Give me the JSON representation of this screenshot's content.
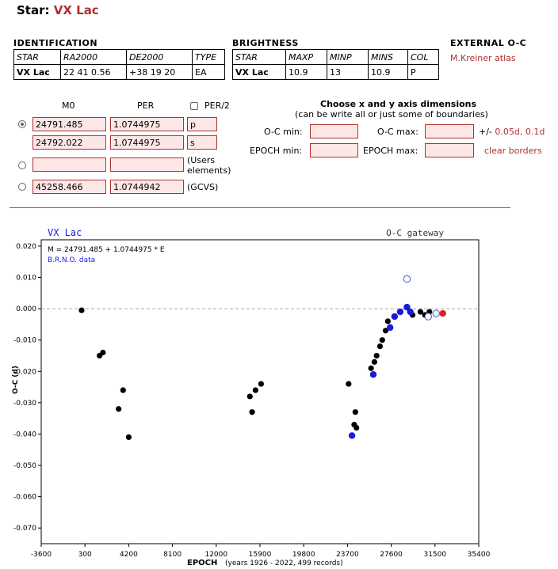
{
  "page": {
    "title_prefix": "Star:",
    "star_name": "VX Lac"
  },
  "identification": {
    "heading": "IDENTIFICATION",
    "headers": [
      "STAR",
      "RA2000",
      "DE2000",
      "TYPE"
    ],
    "values": [
      "VX Lac",
      "22 41 0.56",
      "+38 19 20",
      "EA"
    ]
  },
  "brightness": {
    "heading": "BRIGHTNESS",
    "headers": [
      "STAR",
      "MAXP",
      "MINP",
      "MINS",
      "COL"
    ],
    "values": [
      "VX Lac",
      "10.9",
      "13",
      "10.9",
      "P"
    ]
  },
  "external": {
    "heading": "EXTERNAL O-C",
    "link": "M.Kreiner atlas"
  },
  "elements": {
    "m0_header": "M0",
    "per_header": "PER",
    "per2_label": "PER/2",
    "rows": [
      {
        "m0": "24791.485",
        "per": "1.0744975",
        "tag": "p",
        "selected": true
      },
      {
        "m0": "24792.022",
        "per": "1.0744975",
        "tag": "s"
      },
      {
        "m0": "",
        "per": "",
        "note_line1": "(Users",
        "note_line2": "elements)"
      },
      {
        "m0": "45258.466",
        "per": "1.0744942",
        "note_line1": "(GCVS)"
      }
    ]
  },
  "axis_form": {
    "title": "Choose x and y axis dimensions",
    "subtitle": "(can be write all or just some of boundaries)",
    "oc_min_label": "O-C min:",
    "oc_max_label": "O-C max:",
    "epoch_min_label": "EPOCH min:",
    "epoch_max_label": "EPOCH max:",
    "pm_prefix": "+/-",
    "pm_link_1": "0.05d",
    "pm_sep": ",",
    "pm_link_2": "0.1d",
    "clear_link": "clear borders"
  },
  "chart_data": {
    "type": "scatter",
    "title": "VX Lac",
    "right_title": "O-C gateway",
    "formula": "M = 24791.485 + 1.0744975 * E",
    "source": "B.R.N.O. data",
    "xlabel": "EPOCH",
    "xlabel_note": "(years 1926 - 2022, 499 records)",
    "ylabel": "O-C (d)",
    "xlim": [
      -3600,
      35400
    ],
    "ylim": [
      -0.075,
      0.022
    ],
    "xticks": [
      -3600,
      300,
      4200,
      8100,
      12000,
      15900,
      19800,
      23700,
      27600,
      31500,
      35400
    ],
    "yticks": [
      0.02,
      0.01,
      0.0,
      -0.01,
      -0.02,
      -0.03,
      -0.04,
      -0.05,
      -0.06,
      -0.07
    ],
    "ytick_labels": [
      "0.020",
      "0.010",
      "0.000",
      "-0.010",
      "-0.020",
      "-0.030",
      "-0.040",
      "-0.050",
      "-0.060",
      "-0.070"
    ],
    "zero_line": true,
    "colors": {
      "visual": "#000000",
      "ccd": "#1a1adb",
      "red": "#e02020",
      "open": "#4060c0"
    },
    "large_black": [
      [
        0,
        -0.0005
      ],
      [
        1600,
        -0.015
      ],
      [
        1900,
        -0.014
      ],
      [
        3300,
        -0.032
      ],
      [
        3700,
        -0.026
      ],
      [
        4200,
        -0.041
      ],
      [
        15000,
        -0.028
      ],
      [
        15500,
        -0.026
      ],
      [
        16000,
        -0.024
      ],
      [
        15200,
        -0.033
      ],
      [
        23800,
        -0.024
      ],
      [
        24300,
        -0.037
      ],
      [
        24400,
        -0.033
      ],
      [
        24500,
        -0.038
      ],
      [
        25800,
        -0.019
      ],
      [
        26100,
        -0.017
      ],
      [
        26300,
        -0.015
      ],
      [
        26600,
        -0.012
      ],
      [
        26800,
        -0.01
      ],
      [
        27100,
        -0.007
      ],
      [
        27300,
        -0.004
      ],
      [
        29500,
        -0.002
      ],
      [
        30200,
        -0.001
      ],
      [
        30600,
        -0.002
      ],
      [
        31000,
        -0.001
      ]
    ],
    "large_blue": [
      [
        24100,
        -0.0405
      ],
      [
        26000,
        -0.021
      ],
      [
        27500,
        -0.006
      ],
      [
        27900,
        -0.0025
      ],
      [
        28400,
        -0.001
      ],
      [
        29000,
        0.0005
      ],
      [
        29300,
        -0.001
      ]
    ],
    "large_red": [
      [
        32200,
        -0.0015
      ]
    ],
    "open_circles": [
      [
        29000,
        0.0095
      ],
      [
        30900,
        -0.0025
      ],
      [
        31600,
        -0.0015
      ]
    ]
  }
}
